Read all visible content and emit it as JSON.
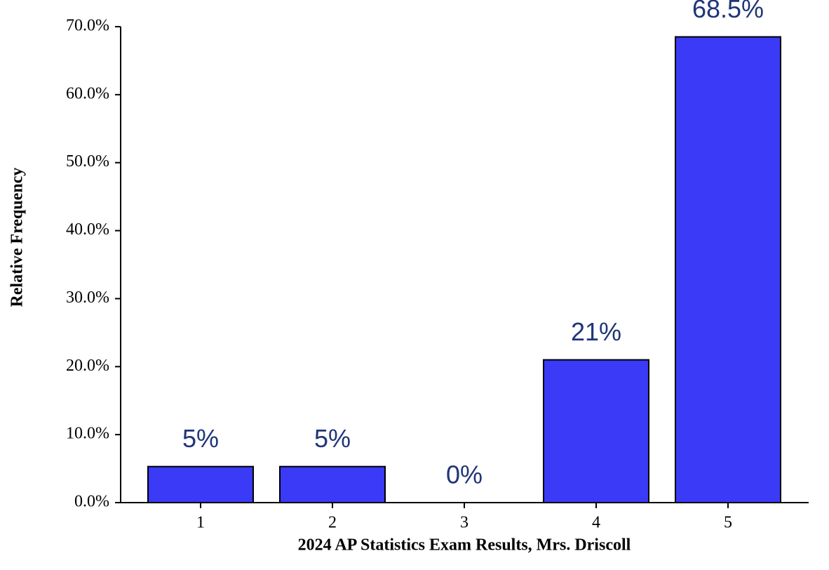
{
  "chart_data": {
    "type": "bar",
    "x_label": "2024 AP Statistics Exam Results, Mrs. Driscoll",
    "y_label": "Relative Frequency",
    "categories": [
      "1",
      "2",
      "3",
      "4",
      "5"
    ],
    "values": [
      5.3,
      5.3,
      0,
      21,
      68.5
    ],
    "value_labels": [
      "5%",
      "5%",
      "0%",
      "21%",
      "68.5%"
    ],
    "color": "#3a3af7",
    "ylim": [
      0,
      70
    ],
    "yticks": [
      {
        "value": 0,
        "label": "0.0%"
      },
      {
        "value": 10,
        "label": "10.0%"
      },
      {
        "value": 20,
        "label": "20.0%"
      },
      {
        "value": 30,
        "label": "30.0%"
      },
      {
        "value": 40,
        "label": "40.0%"
      },
      {
        "value": 50,
        "label": "50.0%"
      },
      {
        "value": 60,
        "label": "60.0%"
      },
      {
        "value": 70,
        "label": "70.0%"
      }
    ],
    "grid": false
  }
}
